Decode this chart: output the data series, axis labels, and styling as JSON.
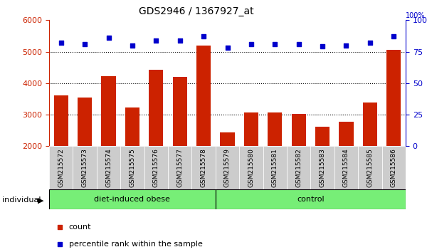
{
  "title": "GDS2946 / 1367927_at",
  "categories": [
    "GSM215572",
    "GSM215573",
    "GSM215574",
    "GSM215575",
    "GSM215576",
    "GSM215577",
    "GSM215578",
    "GSM215579",
    "GSM215580",
    "GSM215581",
    "GSM215582",
    "GSM215583",
    "GSM215584",
    "GSM215585",
    "GSM215586"
  ],
  "bar_values": [
    3620,
    3550,
    4230,
    3220,
    4430,
    4210,
    5200,
    2440,
    3060,
    3080,
    3020,
    2620,
    2780,
    3390,
    5060
  ],
  "scatter_values": [
    82,
    81,
    86,
    80,
    84,
    84,
    87,
    78,
    81,
    81,
    81,
    79,
    80,
    82,
    87
  ],
  "bar_color": "#cc2200",
  "scatter_color": "#0000cc",
  "ylim_left": [
    2000,
    6000
  ],
  "ylim_right": [
    0,
    100
  ],
  "yticks_left": [
    2000,
    3000,
    4000,
    5000,
    6000
  ],
  "yticks_right": [
    0,
    25,
    50,
    75,
    100
  ],
  "group1_label": "diet-induced obese",
  "group1_count": 7,
  "group2_label": "control",
  "group2_count": 8,
  "group_bg_color": "#77ee77",
  "tick_bg_color": "#cccccc",
  "legend_count": "count",
  "legend_pct": "percentile rank within the sample",
  "individual_label": "individual",
  "grid_lines": [
    3000,
    4000,
    5000
  ]
}
